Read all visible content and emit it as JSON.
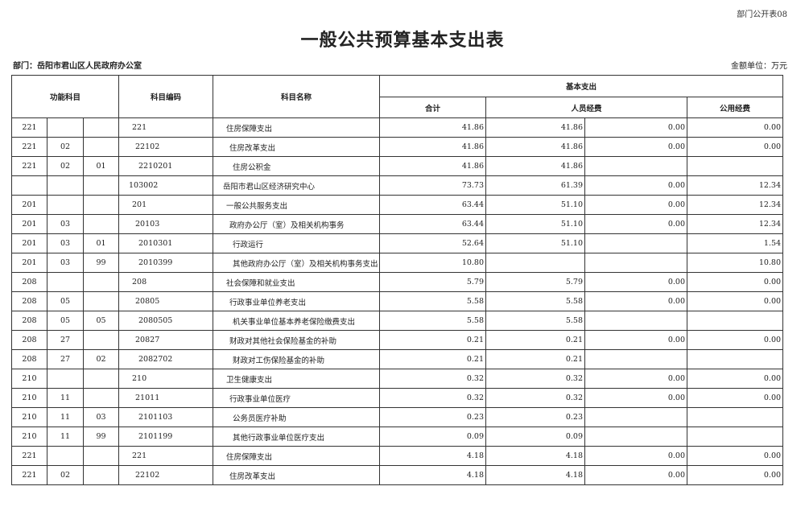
{
  "form_number": "部门公开表08",
  "title": "一般公共预算基本支出表",
  "department_label": "部门：岳阳市君山区人民政府办公室",
  "unit_label": "金额单位：万元",
  "headers": {
    "function_subject": "功能科目",
    "subject_code": "科目编码",
    "subject_name": "科目名称",
    "basic_expenditure": "基本支出",
    "total": "合计",
    "personnel": "人员经费",
    "public": "公用经费"
  },
  "rows": [
    {
      "f1": "221",
      "f2": "",
      "f3": "",
      "code": "221",
      "name": "住房保障支出",
      "level": 1,
      "total": "41.86",
      "p1": "41.86",
      "p2": "0.00",
      "pub": "0.00"
    },
    {
      "f1": "221",
      "f2": "02",
      "f3": "",
      "code": "22102",
      "name": "住房改革支出",
      "level": 2,
      "total": "41.86",
      "p1": "41.86",
      "p2": "0.00",
      "pub": "0.00"
    },
    {
      "f1": "221",
      "f2": "02",
      "f3": "01",
      "code": "2210201",
      "name": "住房公积金",
      "level": 3,
      "total": "41.86",
      "p1": "41.86",
      "p2": "",
      "pub": ""
    },
    {
      "f1": "",
      "f2": "",
      "f3": "",
      "code": "103002",
      "name": "岳阳市君山区经济研究中心",
      "level": 0,
      "total": "73.73",
      "p1": "61.39",
      "p2": "0.00",
      "pub": "12.34"
    },
    {
      "f1": "201",
      "f2": "",
      "f3": "",
      "code": "201",
      "name": "一般公共服务支出",
      "level": 1,
      "total": "63.44",
      "p1": "51.10",
      "p2": "0.00",
      "pub": "12.34"
    },
    {
      "f1": "201",
      "f2": "03",
      "f3": "",
      "code": "20103",
      "name": "政府办公厅（室）及相关机构事务",
      "level": 2,
      "total": "63.44",
      "p1": "51.10",
      "p2": "0.00",
      "pub": "12.34"
    },
    {
      "f1": "201",
      "f2": "03",
      "f3": "01",
      "code": "2010301",
      "name": "行政运行",
      "level": 3,
      "total": "52.64",
      "p1": "51.10",
      "p2": "",
      "pub": "1.54"
    },
    {
      "f1": "201",
      "f2": "03",
      "f3": "99",
      "code": "2010399",
      "name": "其他政府办公厅（室）及相关机构事务支出",
      "level": 3,
      "total": "10.80",
      "p1": "",
      "p2": "",
      "pub": "10.80"
    },
    {
      "f1": "208",
      "f2": "",
      "f3": "",
      "code": "208",
      "name": "社会保障和就业支出",
      "level": 1,
      "total": "5.79",
      "p1": "5.79",
      "p2": "0.00",
      "pub": "0.00"
    },
    {
      "f1": "208",
      "f2": "05",
      "f3": "",
      "code": "20805",
      "name": "行政事业单位养老支出",
      "level": 2,
      "total": "5.58",
      "p1": "5.58",
      "p2": "0.00",
      "pub": "0.00"
    },
    {
      "f1": "208",
      "f2": "05",
      "f3": "05",
      "code": "2080505",
      "name": "机关事业单位基本养老保险缴费支出",
      "level": 3,
      "total": "5.58",
      "p1": "5.58",
      "p2": "",
      "pub": ""
    },
    {
      "f1": "208",
      "f2": "27",
      "f3": "",
      "code": "20827",
      "name": "财政对其他社会保险基金的补助",
      "level": 2,
      "total": "0.21",
      "p1": "0.21",
      "p2": "0.00",
      "pub": "0.00"
    },
    {
      "f1": "208",
      "f2": "27",
      "f3": "02",
      "code": "2082702",
      "name": "财政对工伤保险基金的补助",
      "level": 3,
      "total": "0.21",
      "p1": "0.21",
      "p2": "",
      "pub": ""
    },
    {
      "f1": "210",
      "f2": "",
      "f3": "",
      "code": "210",
      "name": "卫生健康支出",
      "level": 1,
      "total": "0.32",
      "p1": "0.32",
      "p2": "0.00",
      "pub": "0.00"
    },
    {
      "f1": "210",
      "f2": "11",
      "f3": "",
      "code": "21011",
      "name": "行政事业单位医疗",
      "level": 2,
      "total": "0.32",
      "p1": "0.32",
      "p2": "0.00",
      "pub": "0.00"
    },
    {
      "f1": "210",
      "f2": "11",
      "f3": "03",
      "code": "2101103",
      "name": "公务员医疗补助",
      "level": 3,
      "total": "0.23",
      "p1": "0.23",
      "p2": "",
      "pub": ""
    },
    {
      "f1": "210",
      "f2": "11",
      "f3": "99",
      "code": "2101199",
      "name": "其他行政事业单位医疗支出",
      "level": 3,
      "total": "0.09",
      "p1": "0.09",
      "p2": "",
      "pub": ""
    },
    {
      "f1": "221",
      "f2": "",
      "f3": "",
      "code": "221",
      "name": "住房保障支出",
      "level": 1,
      "total": "4.18",
      "p1": "4.18",
      "p2": "0.00",
      "pub": "0.00"
    },
    {
      "f1": "221",
      "f2": "02",
      "f3": "",
      "code": "22102",
      "name": "住房改革支出",
      "level": 2,
      "total": "4.18",
      "p1": "4.18",
      "p2": "0.00",
      "pub": "0.00"
    }
  ]
}
